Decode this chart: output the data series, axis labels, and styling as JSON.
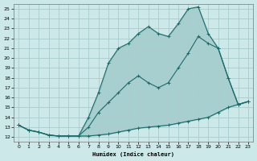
{
  "xlabel": "Humidex (Indice chaleur)",
  "bg_color": "#cce8e8",
  "line_color": "#1a6b6b",
  "grid_color": "#aacccc",
  "x_ticks": [
    0,
    1,
    2,
    3,
    4,
    5,
    6,
    7,
    8,
    9,
    10,
    11,
    12,
    13,
    14,
    15,
    16,
    17,
    18,
    19,
    20,
    21,
    22,
    23
  ],
  "y_ticks": [
    12,
    13,
    14,
    15,
    16,
    17,
    18,
    19,
    20,
    21,
    22,
    23,
    24,
    25
  ],
  "xlim": [
    -0.5,
    23.5
  ],
  "ylim": [
    11.5,
    25.5
  ],
  "line1_x": [
    0,
    1,
    2,
    3,
    4,
    5,
    6,
    7,
    8,
    9,
    10,
    11,
    12,
    13,
    14,
    15,
    16,
    17,
    18,
    19,
    20,
    21,
    22,
    23
  ],
  "line1_y": [
    13.2,
    12.7,
    12.5,
    12.2,
    12.1,
    12.1,
    12.1,
    12.1,
    12.2,
    12.3,
    12.5,
    12.7,
    12.9,
    13.0,
    13.1,
    13.2,
    13.4,
    13.6,
    13.8,
    14.0,
    14.5,
    15.0,
    15.3,
    15.6
  ],
  "line2_x": [
    0,
    1,
    2,
    3,
    4,
    5,
    6,
    7,
    8,
    9,
    10,
    11,
    12,
    13,
    14,
    15,
    16,
    17,
    18,
    19,
    20,
    21,
    22,
    23
  ],
  "line2_y": [
    13.2,
    12.7,
    12.5,
    12.2,
    12.1,
    12.1,
    12.1,
    13.0,
    14.5,
    15.5,
    16.5,
    17.5,
    18.2,
    17.5,
    17.0,
    17.5,
    19.0,
    20.5,
    22.2,
    21.5,
    21.0,
    18.0,
    15.3,
    15.6
  ],
  "line3_x": [
    0,
    1,
    2,
    3,
    4,
    5,
    6,
    7,
    8,
    9,
    10,
    11,
    12,
    13,
    14,
    15,
    16,
    17,
    18,
    19,
    20,
    21,
    22,
    23
  ],
  "line3_y": [
    13.2,
    12.7,
    12.5,
    12.2,
    12.1,
    12.1,
    12.1,
    14.0,
    16.5,
    19.5,
    21.0,
    21.5,
    22.5,
    23.2,
    22.5,
    22.2,
    23.5,
    25.0,
    25.2,
    22.5,
    21.0,
    18.0,
    15.3,
    15.6
  ]
}
